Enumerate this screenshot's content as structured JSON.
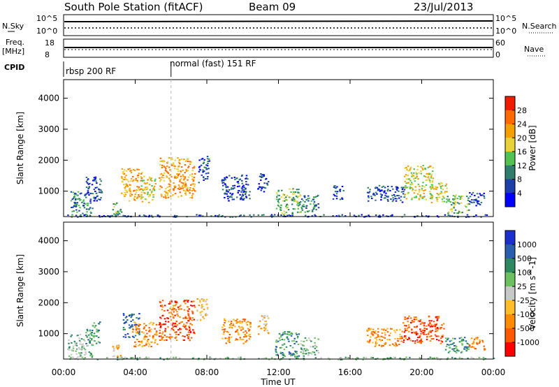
{
  "header": {
    "station": "South Pole Station (fitACF)",
    "beam": "Beam 09",
    "date": "23/Jul/2013"
  },
  "top_panels": {
    "nsky_label": "N.Sky",
    "nsky_top_tick": "10^5",
    "nsky_bottom_tick": "10^0",
    "nsearch_label": "N.Search",
    "nsearch_top_tick": "10^5",
    "nsearch_bottom_tick": "10^0",
    "freq_label_line1": "Freq.",
    "freq_label_line2": "[MHz]",
    "freq_top_tick": "18",
    "freq_bottom_tick": "8",
    "nave_label": "Nave",
    "nave_top_tick": "60",
    "nave_bottom_tick": "0",
    "cpid_label": "CPID",
    "cpid_1": "rbsp 200 RF",
    "cpid_2": "normal (fast) 151 RF",
    "cpid_switch_hour": 6.0
  },
  "x_axis": {
    "label": "Time UT",
    "range_hours": [
      0,
      24
    ],
    "ticks": [
      {
        "h": 0,
        "label": "00:00"
      },
      {
        "h": 4,
        "label": "04:00"
      },
      {
        "h": 8,
        "label": "08:00"
      },
      {
        "h": 12,
        "label": "12:00"
      },
      {
        "h": 16,
        "label": "16:00"
      },
      {
        "h": 20,
        "label": "20:00"
      },
      {
        "h": 24,
        "label": "00:00"
      }
    ]
  },
  "chart_data": [
    {
      "type": "heatmap",
      "name": "power",
      "ylabel": "Slant Range [km]",
      "ylim": [
        180,
        4600
      ],
      "yticks": [
        1000,
        2000,
        3000,
        4000
      ],
      "colorbar_label": "Power [dB]",
      "colorbar_ticks": [
        "28",
        "24",
        "20",
        "16",
        "12",
        "8",
        "4"
      ],
      "colors": [
        "#0000ff",
        "#1c3fa8",
        "#2f7d6a",
        "#52c352",
        "#e8d23a",
        "#f5a000",
        "#ff6a00",
        "#f01c00"
      ],
      "patches": [
        {
          "t0": 0.3,
          "t1": 1.6,
          "r0": 250,
          "r1": 1000,
          "level": 2
        },
        {
          "t0": 1.2,
          "t1": 2.1,
          "r0": 700,
          "r1": 1500,
          "level": 1
        },
        {
          "t0": 2.7,
          "t1": 3.2,
          "r0": 250,
          "r1": 650,
          "level": 3
        },
        {
          "t0": 3.2,
          "t1": 4.4,
          "r0": 700,
          "r1": 1750,
          "level": 5
        },
        {
          "t0": 4.3,
          "t1": 5.1,
          "r0": 650,
          "r1": 1500,
          "level": 4
        },
        {
          "t0": 5.3,
          "t1": 7.3,
          "r0": 800,
          "r1": 2100,
          "level": 5
        },
        {
          "t0": 7.5,
          "t1": 8.1,
          "r0": 1300,
          "r1": 2150,
          "level": 1
        },
        {
          "t0": 8.8,
          "t1": 10.4,
          "r0": 700,
          "r1": 1550,
          "level": 1
        },
        {
          "t0": 10.8,
          "t1": 11.4,
          "r0": 1000,
          "r1": 1600,
          "level": 1
        },
        {
          "t0": 11.8,
          "t1": 13.2,
          "r0": 250,
          "r1": 1100,
          "level": 3
        },
        {
          "t0": 13.2,
          "t1": 14.2,
          "r0": 300,
          "r1": 900,
          "level": 2
        },
        {
          "t0": 15.0,
          "t1": 15.6,
          "r0": 700,
          "r1": 1200,
          "level": 1
        },
        {
          "t0": 16.9,
          "t1": 19.0,
          "r0": 650,
          "r1": 1200,
          "level": 1
        },
        {
          "t0": 19.0,
          "t1": 20.6,
          "r0": 750,
          "r1": 1850,
          "level": 4
        },
        {
          "t0": 20.4,
          "t1": 21.4,
          "r0": 650,
          "r1": 1300,
          "level": 4
        },
        {
          "t0": 21.4,
          "t1": 22.6,
          "r0": 300,
          "r1": 900,
          "level": 3
        },
        {
          "t0": 22.6,
          "t1": 23.5,
          "r0": 550,
          "r1": 1000,
          "level": 1
        },
        {
          "t0": 0.0,
          "t1": 24.0,
          "r0": 180,
          "r1": 260,
          "level": 1
        }
      ]
    },
    {
      "type": "heatmap",
      "name": "velocity",
      "ylabel": "Slant Range [km]",
      "ylim": [
        180,
        4600
      ],
      "yticks": [
        1000,
        2000,
        3000,
        4000
      ],
      "colorbar_label": "Velocity [m s^-1]",
      "colorbar_ticks": [
        "1000",
        "500",
        "100",
        "25",
        "-25",
        "-100",
        "-500",
        "-1000"
      ],
      "colors": [
        "#ff0000",
        "#ff5a00",
        "#ff8c00",
        "#ffbe28",
        "#c8c8c8",
        "#6cc060",
        "#2e8a5e",
        "#2a5cb0",
        "#1a2fcc"
      ],
      "patches": [
        {
          "t0": 0.2,
          "t1": 1.6,
          "r0": 250,
          "r1": 1000,
          "level": 5
        },
        {
          "t0": 1.2,
          "t1": 2.0,
          "r0": 700,
          "r1": 1400,
          "level": 6
        },
        {
          "t0": 2.7,
          "t1": 3.2,
          "r0": 250,
          "r1": 650,
          "level": 3
        },
        {
          "t0": 3.3,
          "t1": 4.2,
          "r0": 900,
          "r1": 1700,
          "level": 7
        },
        {
          "t0": 3.8,
          "t1": 5.2,
          "r0": 600,
          "r1": 1400,
          "level": 2
        },
        {
          "t0": 5.3,
          "t1": 7.3,
          "r0": 800,
          "r1": 2100,
          "level": 1
        },
        {
          "t0": 7.4,
          "t1": 8.0,
          "r0": 1400,
          "r1": 2150,
          "level": 3
        },
        {
          "t0": 8.8,
          "t1": 10.4,
          "r0": 700,
          "r1": 1500,
          "level": 2
        },
        {
          "t0": 10.8,
          "t1": 11.4,
          "r0": 1000,
          "r1": 1600,
          "level": 3
        },
        {
          "t0": 11.8,
          "t1": 13.1,
          "r0": 250,
          "r1": 1100,
          "level": 6
        },
        {
          "t0": 13.2,
          "t1": 14.2,
          "r0": 300,
          "r1": 900,
          "level": 5
        },
        {
          "t0": 16.9,
          "t1": 18.9,
          "r0": 600,
          "r1": 1200,
          "level": 2
        },
        {
          "t0": 18.9,
          "t1": 21.2,
          "r0": 700,
          "r1": 1600,
          "level": 1
        },
        {
          "t0": 21.2,
          "t1": 22.6,
          "r0": 350,
          "r1": 900,
          "level": 6
        },
        {
          "t0": 22.6,
          "t1": 23.5,
          "r0": 500,
          "r1": 900,
          "level": 2
        },
        {
          "t0": 0.0,
          "t1": 24.0,
          "r0": 180,
          "r1": 260,
          "level": 5
        }
      ]
    }
  ]
}
